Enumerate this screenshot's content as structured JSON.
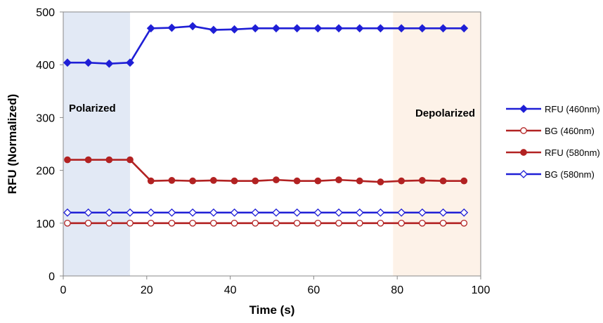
{
  "chart_data": {
    "type": "line",
    "title": "",
    "xlabel": "Time (s)",
    "ylabel": "RFU (Normalized)",
    "xlim": [
      0,
      100
    ],
    "ylim": [
      0,
      500
    ],
    "xticks": [
      0,
      20,
      40,
      60,
      80,
      100
    ],
    "yticks": [
      0,
      100,
      200,
      300,
      400,
      500
    ],
    "grid": false,
    "legend_position": "right",
    "regions": [
      {
        "label": "Polarized",
        "x_start": 0,
        "x_end": 16,
        "color": "#e2e9f5"
      },
      {
        "label": "Depolarized",
        "x_start": 79,
        "x_end": 100,
        "color": "#fdf2e8"
      }
    ],
    "x": [
      1,
      6,
      11,
      16,
      21,
      26,
      31,
      36,
      41,
      46,
      51,
      56,
      61,
      66,
      71,
      76,
      81,
      86,
      91,
      96
    ],
    "series": [
      {
        "name": "RFU (460nm)",
        "color": "#1f1fd6",
        "marker": "diamond",
        "filled": true,
        "values": [
          404,
          404,
          402,
          404,
          469,
          470,
          473,
          466,
          467,
          469,
          469,
          469,
          469,
          469,
          469,
          469,
          469,
          469,
          469,
          469
        ]
      },
      {
        "name": "BG (460nm)",
        "color": "#b22222",
        "marker": "circle",
        "filled": false,
        "values": [
          100,
          100,
          100,
          100,
          100,
          100,
          100,
          100,
          100,
          100,
          100,
          100,
          100,
          100,
          100,
          100,
          100,
          100,
          100,
          100
        ]
      },
      {
        "name": "RFU (580nm)",
        "color": "#b22222",
        "marker": "circle",
        "filled": true,
        "values": [
          220,
          220,
          220,
          220,
          180,
          181,
          180,
          181,
          180,
          180,
          182,
          180,
          180,
          182,
          180,
          178,
          180,
          181,
          180,
          180
        ]
      },
      {
        "name": "BG (580nm)",
        "color": "#1f1fd6",
        "marker": "diamond",
        "filled": false,
        "values": [
          120,
          120,
          120,
          120,
          120,
          120,
          120,
          120,
          120,
          120,
          120,
          120,
          120,
          120,
          120,
          120,
          120,
          120,
          120,
          120
        ]
      }
    ]
  }
}
